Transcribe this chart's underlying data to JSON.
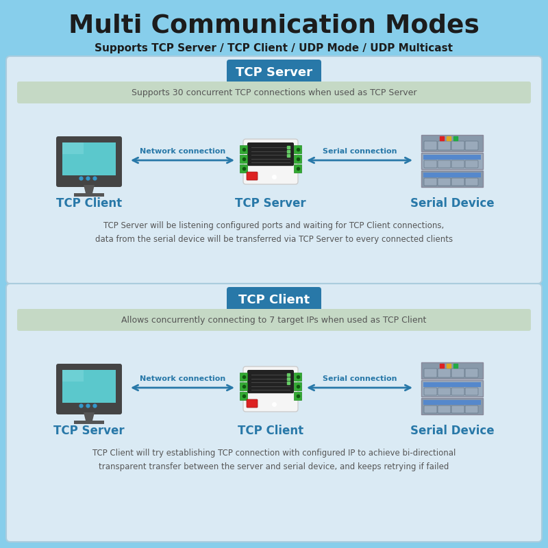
{
  "bg_color": "#87CEEB",
  "title": "Multi Communication Modes",
  "subtitle": "Supports TCP Server / TCP Client / UDP Mode / UDP Multicast",
  "title_color": "#1c1c1c",
  "subtitle_color": "#1c1c1c",
  "panel_bg": "#daeaf4",
  "panel_border": "#aaccdd",
  "badge_bg": "#2878a8",
  "badge_text_color": "#ffffff",
  "info_bar_bg": "#c5d9c5",
  "info_bar_text": "#555555",
  "server_section": {
    "badge": "TCP Server",
    "info": "Supports 30 concurrent TCP connections when used as TCP Server",
    "left_label": "TCP Client",
    "center_label": "TCP Server",
    "right_label": "Serial Device",
    "left_arrow_label": "Network connection",
    "right_arrow_label": "Serial connection",
    "desc1": "TCP Server will be listening configured ports and waiting for TCP Client connections,",
    "desc2": "data from the serial device will be transferred via TCP Server to every connected clients"
  },
  "client_section": {
    "badge": "TCP Client",
    "info": "Allows concurrently connecting to 7 target IPs when used as TCP Client",
    "left_label": "TCP Server",
    "center_label": "TCP Client",
    "right_label": "Serial Device",
    "left_arrow_label": "Network connection",
    "right_arrow_label": "Serial connection",
    "desc1": "TCP Client will try establishing TCP connection with configured IP to achieve bi-directional",
    "desc2": "transparent transfer between the server and serial device, and keeps retrying if failed"
  },
  "arrow_color": "#2878a8",
  "label_color": "#2878a8",
  "desc_color": "#555555",
  "monitor_screen_color": "#5bc8cc",
  "monitor_frame_color": "#444444",
  "monitor_stand_color": "#555555",
  "monitor_led_colors": [
    "#3399cc",
    "#3399cc",
    "#3399cc"
  ],
  "gateway_body_color": "#f5f5f5",
  "gateway_top_color": "#222222",
  "gateway_terminal_color": "#33aa33",
  "gateway_red_color": "#dd2222",
  "rack_frame_color": "#888899",
  "rack_unit_colors": [
    "#8899aa",
    "#9aaabb",
    "#8899aa"
  ],
  "rack_slot_color": "#aabbcc",
  "rack_slot_blue": "#5588cc",
  "rack_light_red": "#dd2222",
  "rack_light_yellow": "#ddaa22",
  "rack_light_green": "#22aa44"
}
